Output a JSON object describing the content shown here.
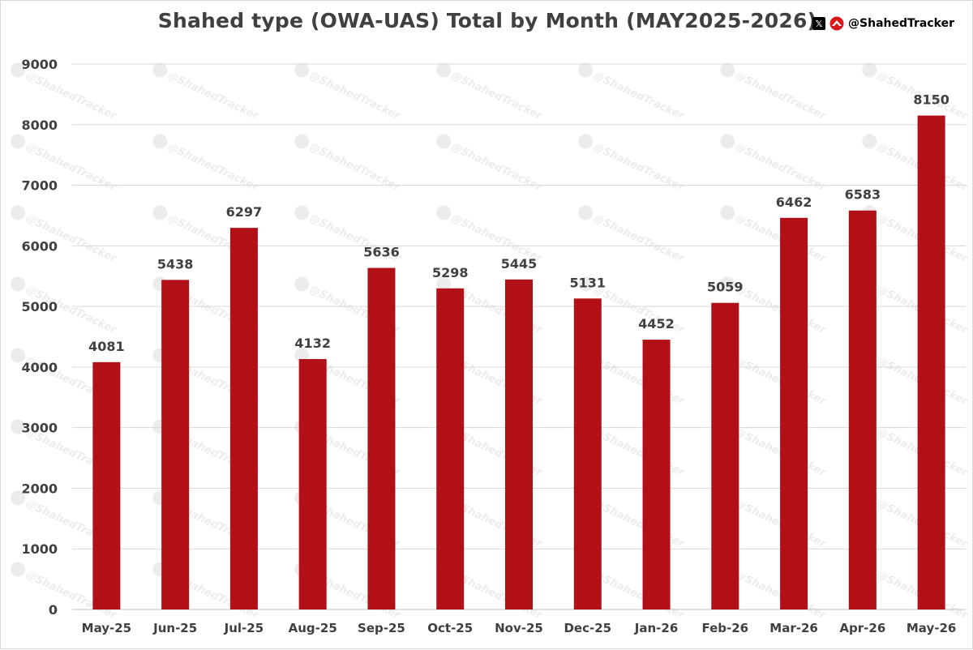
{
  "title": "Shahed type (OWA-UAS) Total by Month (MAY2025-2026)",
  "brand": {
    "x_icon": "x-logo-icon",
    "tracker_icon": "shahed-tracker-logo-icon",
    "handle": "@ShahedTracker"
  },
  "watermark_text": "@ShahedTracker",
  "colors": {
    "bar": "#b11116",
    "title": "#404040",
    "grid": "#d9d9d9",
    "label": "#404040",
    "watermark": "#ececec"
  },
  "chart_data": {
    "type": "bar",
    "title": "Shahed type (OWA-UAS) Total by Month (MAY2025-2026)",
    "xlabel": "",
    "ylabel": "",
    "categories": [
      "May-25",
      "Jun-25",
      "Jul-25",
      "Aug-25",
      "Sep-25",
      "Oct-25",
      "Nov-25",
      "Dec-25",
      "Jan-26",
      "Feb-26",
      "Mar-26",
      "Apr-26",
      "May-26"
    ],
    "values": [
      4081,
      5438,
      6297,
      4132,
      5636,
      5298,
      5445,
      5131,
      4452,
      5059,
      6462,
      6583,
      8150
    ],
    "ylim": [
      0,
      9000
    ],
    "yticks": [
      0,
      1000,
      2000,
      3000,
      4000,
      5000,
      6000,
      7000,
      8000,
      9000
    ],
    "grid": true,
    "data_labels": true,
    "legend": "none"
  }
}
